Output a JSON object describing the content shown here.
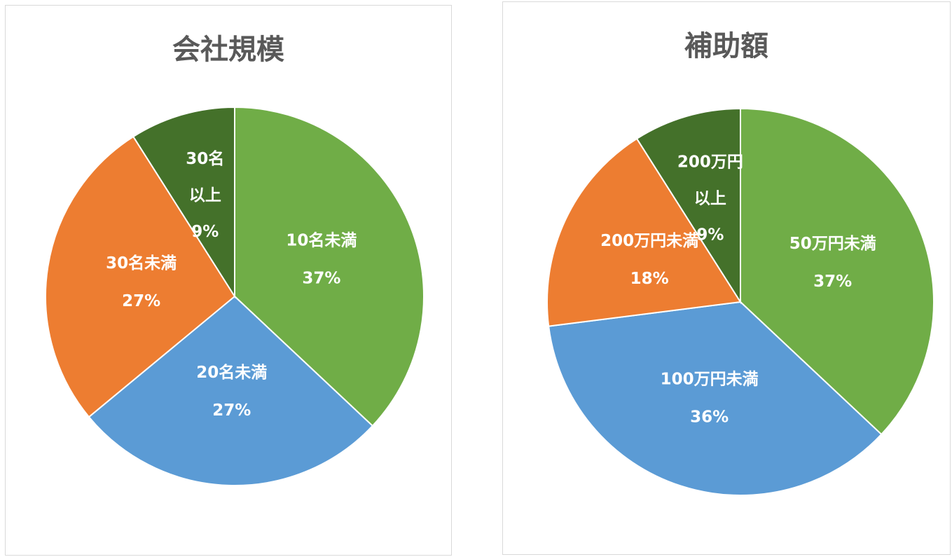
{
  "chart_data": [
    {
      "type": "pie",
      "title": "会社規模",
      "slices": [
        {
          "label": "10名未満",
          "value": 37,
          "value_label": "37%",
          "color": "#70ad47"
        },
        {
          "label": "20名未満",
          "value": 27,
          "value_label": "27%",
          "color": "#5b9bd5"
        },
        {
          "label": "30名未満",
          "value": 27,
          "value_label": "27%",
          "color": "#ed7d31"
        },
        {
          "label": "30名以上",
          "label_lines": [
            "30名",
            "以上"
          ],
          "value": 9,
          "value_label": "9%",
          "color": "#44712a"
        }
      ]
    },
    {
      "type": "pie",
      "title": "補助額",
      "slices": [
        {
          "label": "50万円未満",
          "value": 37,
          "value_label": "37%",
          "color": "#70ad47"
        },
        {
          "label": "100万円未満",
          "value": 36,
          "value_label": "36%",
          "color": "#5b9bd5"
        },
        {
          "label": "200万円未満",
          "value": 18,
          "value_label": "18%",
          "color": "#ed7d31"
        },
        {
          "label": "200万円以上",
          "label_lines": [
            "200万円",
            "以上"
          ],
          "value": 9,
          "value_label": "9%",
          "color": "#44712a"
        }
      ]
    }
  ]
}
